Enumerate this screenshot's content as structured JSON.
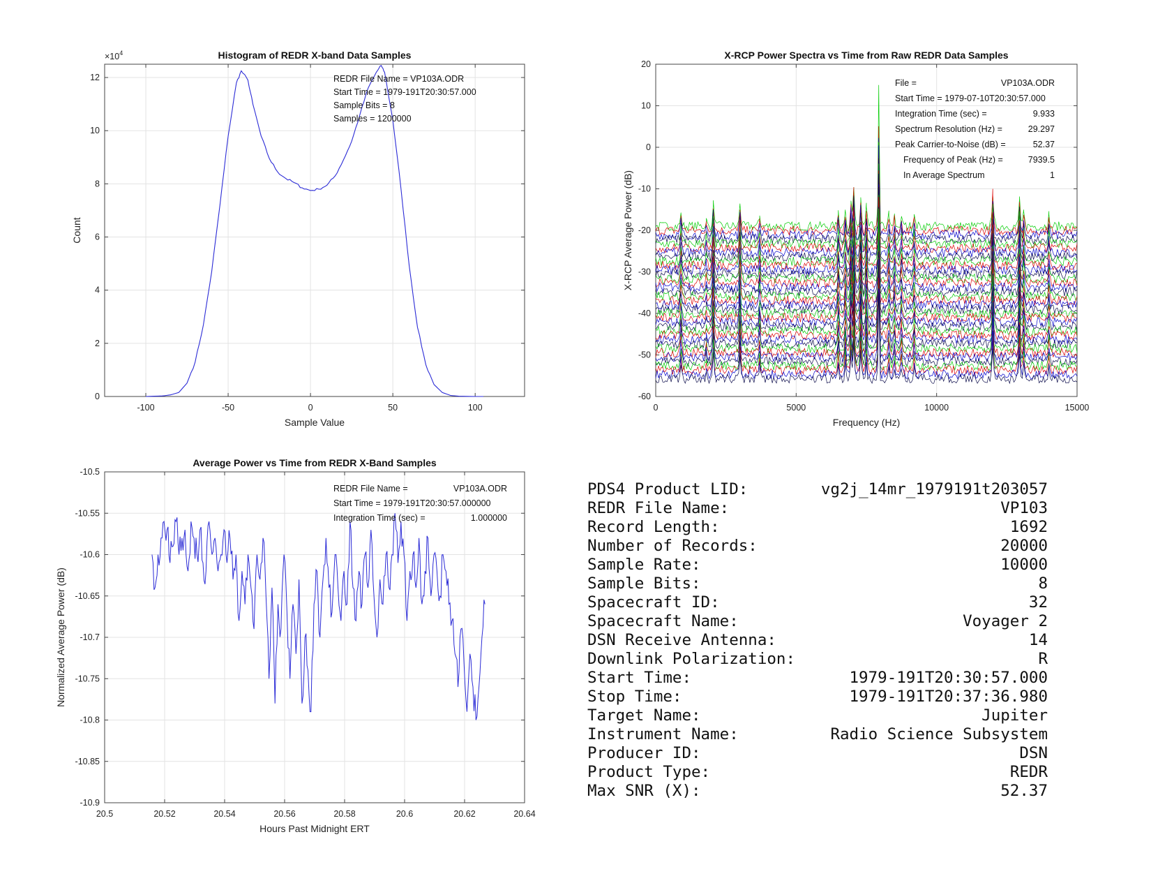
{
  "chart_data": [
    {
      "type": "line",
      "title": "Histogram of REDR X-band Data Samples",
      "xlabel": "Sample Value",
      "ylabel": "Count",
      "y_exponent": "×10",
      "y_exponent_power": "4",
      "xlim": [
        -125,
        130
      ],
      "ylim": [
        0,
        12.5
      ],
      "xticks": [
        -100,
        -50,
        0,
        50,
        100
      ],
      "yticks": [
        0,
        2,
        4,
        6,
        8,
        10,
        12
      ],
      "grid": true,
      "color": "#2b2bd6",
      "x": [
        -100,
        -90,
        -85,
        -80,
        -75,
        -70,
        -65,
        -60,
        -55,
        -50,
        -45,
        -42,
        -38,
        -35,
        -30,
        -25,
        -20,
        -15,
        -10,
        -5,
        0,
        5,
        10,
        15,
        20,
        25,
        30,
        35,
        40,
        43,
        45,
        50,
        55,
        60,
        65,
        70,
        75,
        80,
        85,
        90,
        100,
        105
      ],
      "values": [
        0,
        0.02,
        0.06,
        0.15,
        0.5,
        1.3,
        2.7,
        4.7,
        7.2,
        9.8,
        11.8,
        12.25,
        11.9,
        11.0,
        9.8,
        8.95,
        8.45,
        8.2,
        8.05,
        7.85,
        7.75,
        7.8,
        7.95,
        8.3,
        8.9,
        9.6,
        10.6,
        11.6,
        12.2,
        12.45,
        12.2,
        10.4,
        7.8,
        4.9,
        2.6,
        1.2,
        0.45,
        0.15,
        0.04,
        0.01,
        0,
        0
      ],
      "annotations": [
        "REDR File Name = VP103A.ODR",
        "Start Time = 1979-191T20:30:57.000",
        "Sample Bits = 8",
        "Samples = 1200000"
      ]
    },
    {
      "type": "line",
      "title": "X-RCP Power Spectra vs Time from Raw REDR Data Samples",
      "xlabel": "Frequency (Hz)",
      "ylabel": "X-RCP Average Power (dB)",
      "xlim": [
        0,
        15000
      ],
      "ylim": [
        -60,
        20
      ],
      "xticks": [
        0,
        5000,
        10000,
        15000
      ],
      "yticks": [
        -60,
        -50,
        -40,
        -30,
        -20,
        -10,
        0,
        10,
        20
      ],
      "grid": true,
      "series_count": 36,
      "baseline_top_db": -19,
      "baseline_step_db": -1.05,
      "series_colors": [
        "#00cc00",
        "#dd0000",
        "#0000cc",
        "#0a0a4a"
      ],
      "peaks": [
        {
          "freq": 900,
          "height": 4
        },
        {
          "freq": 1800,
          "height": 2
        },
        {
          "freq": 2050,
          "height": 6.5
        },
        {
          "freq": 3000,
          "height": 6
        },
        {
          "freq": 3700,
          "height": 3
        },
        {
          "freq": 6500,
          "height": 4
        },
        {
          "freq": 6750,
          "height": 4
        },
        {
          "freq": 6950,
          "height": 6.5
        },
        {
          "freq": 7050,
          "height": 10
        },
        {
          "freq": 7300,
          "height": 7
        },
        {
          "freq": 7500,
          "height": 5
        },
        {
          "freq": 7939.5,
          "height": 34
        },
        {
          "freq": 8300,
          "height": 3
        },
        {
          "freq": 8500,
          "height": 3
        },
        {
          "freq": 8750,
          "height": 3
        },
        {
          "freq": 9200,
          "height": 3
        },
        {
          "freq": 12000,
          "height": 9.5
        },
        {
          "freq": 12950,
          "height": 7.5
        },
        {
          "freq": 13100,
          "height": 4
        },
        {
          "freq": 14000,
          "height": 3
        }
      ],
      "annotations": [
        {
          "label": "File =",
          "value": "VP103A.ODR"
        },
        {
          "label": "Start Time = 1979-07-10T20:30:57.000",
          "value": ""
        },
        {
          "label": "Integration Time (sec) =",
          "value": "9.933"
        },
        {
          "label": "Spectrum Resolution (Hz) =",
          "value": "29.297"
        },
        {
          "label": "Peak Carrier-to-Noise (dB) =",
          "value": "52.37"
        },
        {
          "label": "Frequency of Peak (Hz) =",
          "value": "7939.5"
        },
        {
          "label": "In Average Spectrum",
          "value": "1"
        }
      ]
    },
    {
      "type": "line",
      "title": "Average Power vs Time from REDR X-Band Samples",
      "xlabel": "Hours Past Midnight ERT",
      "ylabel": "Normalized Average Power (dB)",
      "xlim": [
        20.5,
        20.64
      ],
      "ylim": [
        -10.9,
        -10.5
      ],
      "xticks": [
        20.5,
        20.52,
        20.54,
        20.56,
        20.58,
        20.6,
        20.62,
        20.64
      ],
      "ytick_labels": [
        "20.5",
        "20.52",
        "20.54",
        "20.56",
        "20.58",
        "20.6",
        "20.62",
        "20.64"
      ],
      "yticks": [
        -10.9,
        -10.85,
        -10.8,
        -10.75,
        -10.7,
        -10.65,
        -10.6,
        -10.55,
        -10.5
      ],
      "yticks_labels": [
        "-10.9",
        "-10.85",
        "-10.8",
        "-10.75",
        "-10.7",
        "-10.65",
        "-10.6",
        "-10.55",
        "-10.5"
      ],
      "grid": true,
      "color": "#2b2bd6",
      "x": [
        20.5158,
        20.5168,
        20.5178,
        20.5188,
        20.5198,
        20.5208,
        20.5218,
        20.5228,
        20.5238,
        20.5248,
        20.5258,
        20.5268,
        20.5278,
        20.5288,
        20.5298,
        20.5308,
        20.5318,
        20.5328,
        20.5338,
        20.5348,
        20.5358,
        20.5368,
        20.5378,
        20.5388,
        20.5398,
        20.5408,
        20.5418,
        20.5428,
        20.5438,
        20.5448,
        20.5458,
        20.5468,
        20.5478,
        20.5488,
        20.5498,
        20.5508,
        20.5518,
        20.5528,
        20.5538,
        20.5548,
        20.5558,
        20.5568,
        20.5578,
        20.5588,
        20.5598,
        20.5608,
        20.5618,
        20.5628,
        20.5638,
        20.5648,
        20.5658,
        20.5668,
        20.5678,
        20.5688,
        20.5698,
        20.5708,
        20.5718,
        20.5728,
        20.5738,
        20.5748,
        20.5758,
        20.5768,
        20.5778,
        20.5788,
        20.5798,
        20.5808,
        20.5818,
        20.5828,
        20.5838,
        20.5848,
        20.5858,
        20.5868,
        20.5878,
        20.5888,
        20.5898,
        20.5908,
        20.5918,
        20.5928,
        20.5938,
        20.5948,
        20.5958,
        20.5968,
        20.5978,
        20.5988,
        20.5998,
        20.6008,
        20.6018,
        20.6028,
        20.6038,
        20.6048,
        20.6058,
        20.6068,
        20.6078,
        20.6088,
        20.6098,
        20.6108,
        20.6118,
        20.6128,
        20.6138,
        20.6148,
        20.6158,
        20.6168,
        20.6178,
        20.6188,
        20.6198,
        20.6208,
        20.6218,
        20.6228,
        20.6238,
        20.6248,
        20.6258,
        20.6268
      ],
      "values": [
        -10.6,
        -10.64,
        -10.6,
        -10.58,
        -10.56,
        -10.57,
        -10.61,
        -10.59,
        -10.56,
        -10.6,
        -10.58,
        -10.57,
        -10.62,
        -10.56,
        -10.58,
        -10.6,
        -10.57,
        -10.61,
        -10.62,
        -10.56,
        -10.6,
        -10.58,
        -10.62,
        -10.6,
        -10.57,
        -10.61,
        -10.58,
        -10.63,
        -10.6,
        -10.68,
        -10.62,
        -10.66,
        -10.6,
        -10.64,
        -10.69,
        -10.6,
        -10.63,
        -10.58,
        -10.65,
        -10.75,
        -10.64,
        -10.78,
        -10.66,
        -10.69,
        -10.6,
        -10.67,
        -10.75,
        -10.66,
        -10.72,
        -10.63,
        -10.78,
        -10.7,
        -10.74,
        -10.79,
        -10.66,
        -10.62,
        -10.7,
        -10.63,
        -10.58,
        -10.64,
        -10.67,
        -10.6,
        -10.64,
        -10.68,
        -10.62,
        -10.66,
        -10.56,
        -10.64,
        -10.68,
        -10.62,
        -10.66,
        -10.6,
        -10.64,
        -10.57,
        -10.65,
        -10.7,
        -10.63,
        -10.66,
        -10.6,
        -10.64,
        -10.6,
        -10.55,
        -10.61,
        -10.56,
        -10.6,
        -10.68,
        -10.62,
        -10.6,
        -10.64,
        -10.58,
        -10.66,
        -10.62,
        -10.58,
        -10.65,
        -10.6,
        -10.62,
        -10.65,
        -10.6,
        -10.62,
        -10.66,
        -10.68,
        -10.72,
        -10.76,
        -10.69,
        -10.73,
        -10.79,
        -10.72,
        -10.76,
        -10.8,
        -10.76,
        -10.7,
        -10.66
      ],
      "annotations": [
        {
          "label": "REDR File Name =",
          "value": "VP103A.ODR"
        },
        {
          "label": "Start Time = 1979-191T20:30:57.000000",
          "value": ""
        },
        {
          "label": "Integration Time (sec) =",
          "value": "1.000000"
        }
      ]
    }
  ],
  "info_table": [
    {
      "label": "PDS4 Product LID:",
      "value": "vg2j_14mr_1979191t203057"
    },
    {
      "label": "REDR File Name:",
      "value": "VP103"
    },
    {
      "label": "Record Length:",
      "value": "1692"
    },
    {
      "label": "Number of Records:",
      "value": "20000"
    },
    {
      "label": "Sample Rate:",
      "value": "10000"
    },
    {
      "label": "Sample Bits:",
      "value": "8"
    },
    {
      "label": "Spacecraft ID:",
      "value": "32"
    },
    {
      "label": "Spacecraft Name:",
      "value": "Voyager 2"
    },
    {
      "label": "DSN Receive Antenna:",
      "value": "14"
    },
    {
      "label": "Downlink Polarization:",
      "value": "R"
    },
    {
      "label": "Start Time:",
      "value": "1979-191T20:30:57.000"
    },
    {
      "label": "Stop Time:",
      "value": "1979-191T20:37:36.980"
    },
    {
      "label": "Target Name:",
      "value": "Jupiter"
    },
    {
      "label": "Instrument Name:",
      "value": "Radio Science Subsystem"
    },
    {
      "label": "Producer ID:",
      "value": "DSN"
    },
    {
      "label": "Product Type:",
      "value": "REDR"
    },
    {
      "label": "Max SNR (X):",
      "value": "52.37"
    }
  ]
}
